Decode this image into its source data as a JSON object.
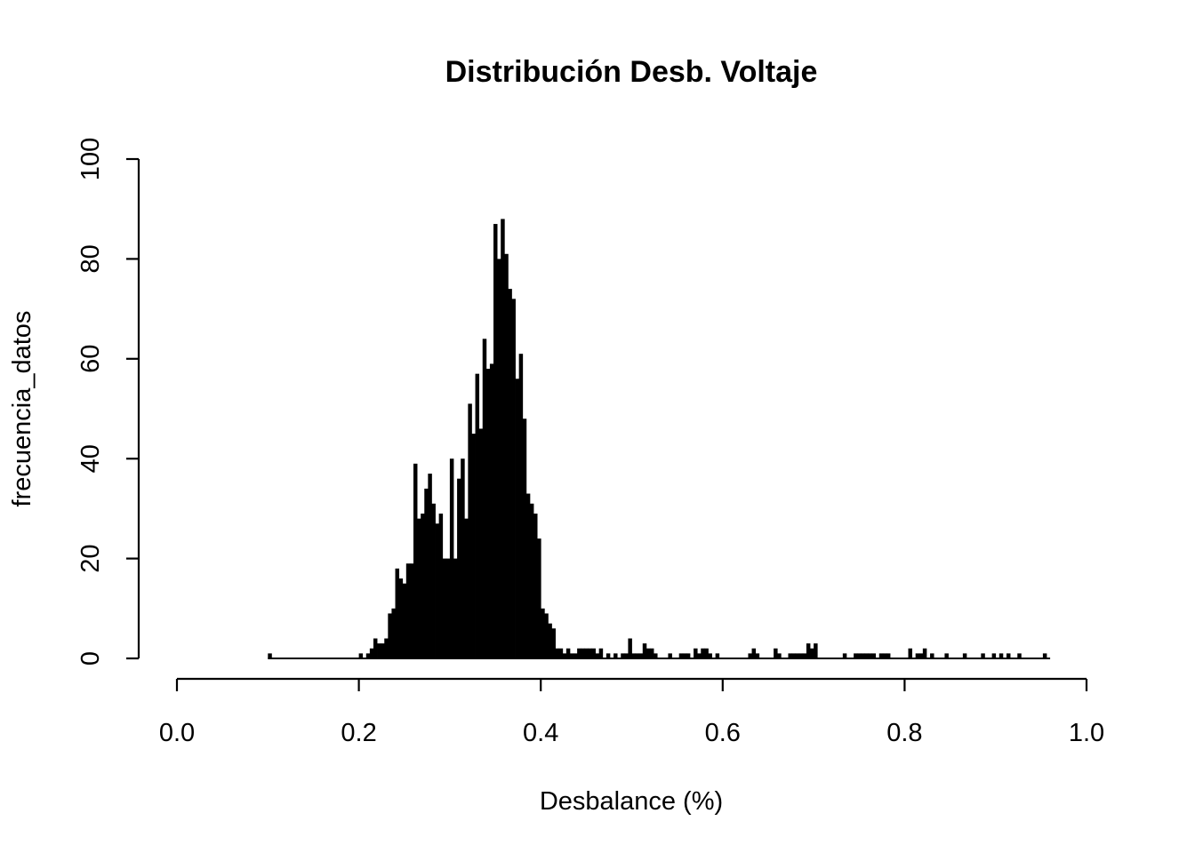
{
  "chart_data": {
    "type": "bar",
    "title": "Distribución Desb. Voltaje",
    "xlabel": "Desbalance (%)",
    "ylabel": "frecuencia_datos",
    "xlim": [
      0,
      1.04
    ],
    "ylim": [
      0,
      100
    ],
    "x_ticks": [
      {
        "value": 0.0,
        "label": "0.0"
      },
      {
        "value": 0.2,
        "label": "0.2"
      },
      {
        "value": 0.4,
        "label": "0.4"
      },
      {
        "value": 0.6,
        "label": "0.6"
      },
      {
        "value": 0.8,
        "label": "0.8"
      },
      {
        "value": 1.0,
        "label": "1.0"
      }
    ],
    "y_ticks": [
      {
        "value": 0,
        "label": "0"
      },
      {
        "value": 20,
        "label": "20"
      },
      {
        "value": 40,
        "label": "40"
      },
      {
        "value": 60,
        "label": "60"
      },
      {
        "value": 80,
        "label": "80"
      },
      {
        "value": 100,
        "label": "100"
      }
    ],
    "x_axis_span": [
      0,
      1.0
    ],
    "y_axis_span": [
      0,
      100
    ],
    "bar_color": "#000000",
    "x_start": 0.1,
    "x_step": 0.004,
    "values": [
      1,
      0,
      0,
      0,
      0,
      0,
      0,
      0,
      0,
      0,
      0,
      0,
      0,
      0,
      0,
      0,
      0,
      0,
      0,
      0,
      0,
      0,
      0,
      0,
      0,
      1,
      0,
      1,
      2,
      4,
      3,
      3,
      4,
      9,
      10,
      18,
      16,
      15,
      19,
      19,
      39,
      28,
      29,
      34,
      37,
      31,
      27,
      29,
      20,
      20,
      40,
      20,
      36,
      40,
      28,
      51,
      45,
      57,
      46,
      64,
      58,
      59,
      87,
      80,
      88,
      81,
      74,
      72,
      56,
      61,
      48,
      33,
      31,
      29,
      24,
      10,
      9,
      7,
      6,
      2,
      2,
      1,
      2,
      1,
      1,
      2,
      2,
      2,
      2,
      2,
      1,
      2,
      0,
      1,
      0,
      1,
      0,
      1,
      1,
      4,
      1,
      1,
      1,
      3,
      2,
      2,
      1,
      0,
      0,
      0,
      1,
      0,
      0,
      1,
      1,
      1,
      0,
      2,
      1,
      2,
      2,
      1,
      0,
      1,
      0,
      0,
      0,
      0,
      0,
      0,
      0,
      0,
      1,
      2,
      1,
      0,
      0,
      0,
      0,
      2,
      1,
      0,
      0,
      1,
      1,
      1,
      1,
      1,
      3,
      2,
      3,
      0,
      0,
      0,
      0,
      0,
      0,
      0,
      1,
      0,
      0,
      1,
      1,
      1,
      1,
      1,
      1,
      0,
      1,
      1,
      1,
      0,
      0,
      0,
      0,
      0,
      2,
      0,
      1,
      1,
      2,
      0,
      1,
      0,
      0,
      0,
      1,
      0,
      0,
      0,
      0,
      1,
      0,
      0,
      0,
      0,
      1,
      0,
      0,
      1,
      0,
      1,
      0,
      1,
      0,
      0,
      1,
      0,
      0,
      0,
      0,
      0,
      0,
      1,
      0
    ]
  }
}
